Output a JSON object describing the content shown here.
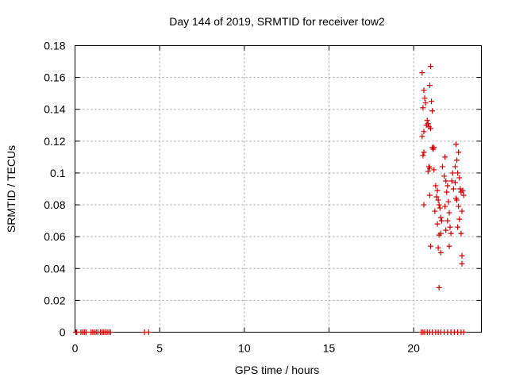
{
  "chart_data": {
    "type": "scatter",
    "title": "Day 144 of 2019, SRMTID for receiver tow2",
    "xlabel": "GPS time / hours",
    "ylabel": "SRMTID / TECUs",
    "xlim": [
      0,
      24
    ],
    "ylim": [
      0,
      0.18
    ],
    "x_ticks": [
      0,
      5,
      10,
      15,
      20
    ],
    "x_tick_labels": [
      "0",
      "5",
      "10",
      "15",
      "20"
    ],
    "y_ticks": [
      0,
      0.02,
      0.04,
      0.06,
      0.08,
      0.1,
      0.12,
      0.14,
      0.16,
      0.18
    ],
    "y_tick_labels": [
      "0",
      "0.02",
      "0.04",
      "0.06",
      "0.08",
      "0.1",
      "0.12",
      "0.14",
      "0.16",
      "0.18"
    ],
    "grid": true,
    "marker": "+",
    "color": "#cc0000",
    "series": [
      {
        "name": "tow2",
        "points": [
          [
            0.05,
            0
          ],
          [
            0.1,
            0
          ],
          [
            0.35,
            0
          ],
          [
            0.45,
            0
          ],
          [
            0.55,
            0
          ],
          [
            0.65,
            0
          ],
          [
            0.95,
            0
          ],
          [
            1.05,
            0
          ],
          [
            1.15,
            0
          ],
          [
            1.25,
            0
          ],
          [
            1.35,
            0
          ],
          [
            1.5,
            0
          ],
          [
            1.6,
            0
          ],
          [
            1.7,
            0
          ],
          [
            1.8,
            0
          ],
          [
            1.9,
            0
          ],
          [
            2.0,
            0
          ],
          [
            2.1,
            0
          ],
          [
            4.1,
            0
          ],
          [
            4.35,
            0
          ],
          [
            20.45,
            0
          ],
          [
            20.55,
            0
          ],
          [
            20.65,
            0
          ],
          [
            20.8,
            0
          ],
          [
            20.95,
            0
          ],
          [
            21.1,
            0
          ],
          [
            21.3,
            0
          ],
          [
            21.45,
            0
          ],
          [
            21.6,
            0
          ],
          [
            21.8,
            0
          ],
          [
            22.0,
            0
          ],
          [
            22.2,
            0
          ],
          [
            22.4,
            0
          ],
          [
            22.6,
            0
          ],
          [
            22.8,
            0
          ],
          [
            22.95,
            0
          ],
          [
            20.5,
            0.163
          ],
          [
            21.0,
            0.167
          ],
          [
            20.95,
            0.155
          ],
          [
            20.6,
            0.152
          ],
          [
            20.65,
            0.147
          ],
          [
            20.7,
            0.144
          ],
          [
            21.05,
            0.145
          ],
          [
            20.55,
            0.141
          ],
          [
            21.1,
            0.139
          ],
          [
            20.8,
            0.133
          ],
          [
            20.85,
            0.131
          ],
          [
            20.75,
            0.13
          ],
          [
            20.9,
            0.129
          ],
          [
            21.0,
            0.128
          ],
          [
            20.6,
            0.126
          ],
          [
            20.5,
            0.123
          ],
          [
            21.1,
            0.116
          ],
          [
            21.2,
            0.116
          ],
          [
            21.15,
            0.115
          ],
          [
            20.6,
            0.113
          ],
          [
            20.55,
            0.111
          ],
          [
            20.9,
            0.104
          ],
          [
            21.2,
            0.102
          ],
          [
            20.85,
            0.101
          ],
          [
            20.95,
            0.103
          ],
          [
            21.3,
            0.092
          ],
          [
            21.4,
            0.089
          ],
          [
            21.35,
            0.085
          ],
          [
            21.45,
            0.083
          ],
          [
            21.5,
            0.08
          ],
          [
            21.25,
            0.076
          ],
          [
            21.55,
            0.078
          ],
          [
            21.6,
            0.072
          ],
          [
            21.65,
            0.07
          ],
          [
            21.4,
            0.068
          ],
          [
            21.6,
            0.062
          ],
          [
            21.5,
            0.061
          ],
          [
            21.45,
            0.053
          ],
          [
            21.6,
            0.05
          ],
          [
            21.0,
            0.054
          ],
          [
            21.5,
            0.028
          ],
          [
            20.6,
            0.08
          ],
          [
            20.95,
            0.086
          ],
          [
            21.7,
            0.104
          ],
          [
            21.8,
            0.098
          ],
          [
            21.9,
            0.095
          ],
          [
            22.0,
            0.092
          ],
          [
            21.95,
            0.088
          ],
          [
            22.05,
            0.082
          ],
          [
            21.85,
            0.079
          ],
          [
            22.1,
            0.075
          ],
          [
            22.0,
            0.07
          ],
          [
            22.15,
            0.066
          ],
          [
            21.9,
            0.064
          ],
          [
            22.2,
            0.062
          ],
          [
            22.1,
            0.054
          ],
          [
            21.85,
            0.11
          ],
          [
            22.3,
            0.1
          ],
          [
            22.25,
            0.095
          ],
          [
            22.35,
            0.09
          ],
          [
            22.5,
            0.118
          ],
          [
            22.65,
            0.113
          ],
          [
            22.55,
            0.108
          ],
          [
            22.6,
            0.1
          ],
          [
            22.7,
            0.097
          ],
          [
            22.45,
            0.094
          ],
          [
            22.75,
            0.09
          ],
          [
            22.8,
            0.088
          ],
          [
            22.9,
            0.089
          ],
          [
            22.55,
            0.083
          ],
          [
            22.65,
            0.079
          ],
          [
            22.85,
            0.076
          ],
          [
            22.7,
            0.071
          ],
          [
            22.6,
            0.066
          ],
          [
            22.8,
            0.062
          ],
          [
            22.85,
            0.048
          ],
          [
            22.85,
            0.043
          ],
          [
            22.5,
            0.084
          ],
          [
            22.95,
            0.086
          ],
          [
            22.45,
            0.104
          ]
        ]
      }
    ]
  }
}
